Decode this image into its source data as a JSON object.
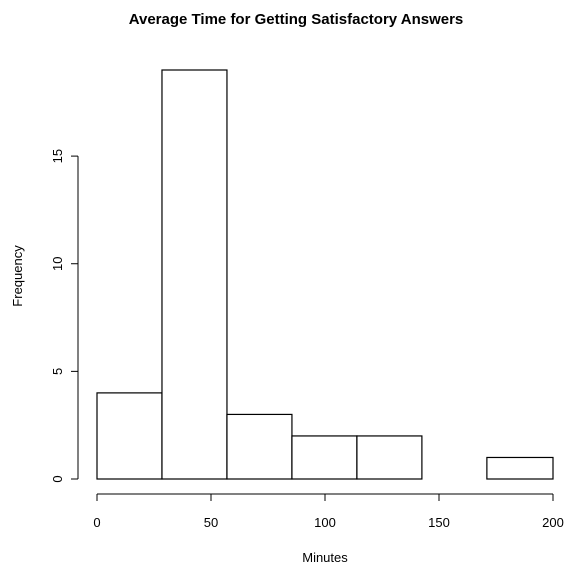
{
  "chart_data": {
    "type": "bar",
    "subtype": "histogram",
    "title": "Average Time for Getting Satisfactory Answers",
    "xlabel": "Minutes",
    "ylabel": "Frequency",
    "bins": [
      {
        "start": 0,
        "end": 28.5,
        "count": 4
      },
      {
        "start": 28.5,
        "end": 57,
        "count": 19
      },
      {
        "start": 57,
        "end": 85.5,
        "count": 3
      },
      {
        "start": 85.5,
        "end": 114,
        "count": 2
      },
      {
        "start": 114,
        "end": 142.5,
        "count": 2
      },
      {
        "start": 142.5,
        "end": 171,
        "count": 0
      },
      {
        "start": 171,
        "end": 200,
        "count": 1
      }
    ],
    "xlim": [
      0,
      200
    ],
    "ylim": [
      0,
      19
    ],
    "x_ticks": [
      0,
      50,
      100,
      150,
      200
    ],
    "y_ticks": [
      0,
      5,
      10,
      15
    ],
    "grid": false,
    "bar_fill": "#ffffff",
    "bar_stroke": "#000000"
  }
}
